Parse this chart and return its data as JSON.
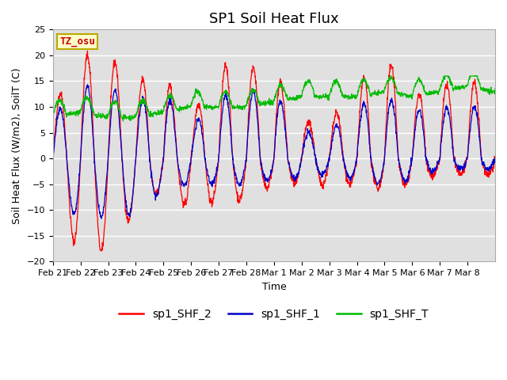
{
  "title": "SP1 Soil Heat Flux",
  "xlabel": "Time",
  "ylabel": "Soil Heat Flux (W/m2), SoilT (C)",
  "ylim": [
    -20,
    25
  ],
  "xlim": [
    0,
    15
  ],
  "background_color": "#ffffff",
  "plot_bg_color": "#e0e0e0",
  "line_colors": {
    "sp1_SHF_2": "#ff0000",
    "sp1_SHF_1": "#0000cc",
    "sp1_SHF_T": "#00bb00"
  },
  "tz_label": "TZ_osu",
  "tz_bg": "#ffffcc",
  "tz_border": "#bbaa00",
  "tz_text_color": "#cc0000",
  "tick_labels": [
    "Feb 21",
    "Feb 22",
    "Feb 23",
    "Feb 24",
    "Feb 25",
    "Feb 26",
    "Feb 27",
    "Feb 28",
    "Mar 1",
    "Mar 2",
    "Mar 3",
    "Mar 4",
    "Mar 5",
    "Mar 6",
    "Mar 7",
    "Mar 8"
  ],
  "yticks": [
    -20,
    -15,
    -10,
    -5,
    0,
    5,
    10,
    15,
    20,
    25
  ],
  "n_points": 1600,
  "title_fontsize": 13,
  "axis_label_fontsize": 9,
  "tick_fontsize": 8,
  "legend_fontsize": 10
}
